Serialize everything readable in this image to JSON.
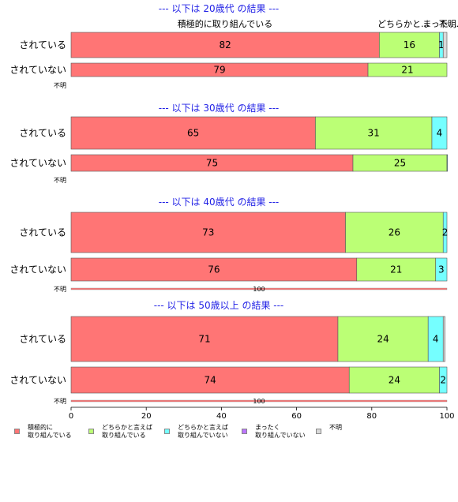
{
  "chart_data": {
    "type": "bar",
    "orientation": "horizontal",
    "stacked": true,
    "xlim": [
      0,
      100
    ],
    "x_ticks": [
      0,
      20,
      40,
      60,
      80,
      100
    ],
    "categories": [
      "積極的に取り組んでいる",
      "どちらかと言えば取り組んでいる",
      "どちらかと言えば取り組んでいない",
      "まったく取り組んでいない",
      "不明"
    ],
    "colors": [
      "#ff7575",
      "#bbff75",
      "#75ffff",
      "#bb75ff",
      "#d9d9d9"
    ],
    "top_labels": [
      "積極的に取り組んでいる",
      "どちらかと…",
      "まった…",
      "不明..."
    ],
    "groups": [
      {
        "title": "--- 以下は 20歳代 の結果 ---",
        "rows": [
          {
            "label": "されている",
            "values": [
              82,
              16,
              1,
              0,
              1
            ],
            "value_labels": [
              "82",
              "16",
              "1",
              "",
              ""
            ]
          },
          {
            "label": "されていない",
            "values": [
              79,
              21,
              0,
              0,
              0
            ],
            "value_labels": [
              "79",
              "21",
              "",
              "",
              ""
            ]
          }
        ],
        "unknown": {
          "label": "不明",
          "value_label": ""
        }
      },
      {
        "title": "--- 以下は 30歳代 の結果 ---",
        "rows": [
          {
            "label": "されている",
            "values": [
              65,
              31,
              4,
              0,
              0
            ],
            "value_labels": [
              "65",
              "31",
              "4",
              "",
              ""
            ]
          },
          {
            "label": "されていない",
            "values": [
              75,
              25,
              0.5,
              0,
              0
            ],
            "value_labels": [
              "75",
              "25",
              "",
              "",
              ""
            ]
          }
        ],
        "unknown": {
          "label": "不明",
          "value_label": ""
        }
      },
      {
        "title": "--- 以下は 40歳代 の結果 ---",
        "rows": [
          {
            "label": "されている",
            "values": [
              73,
              26,
              2,
              0,
              0
            ],
            "value_labels": [
              "73",
              "26",
              "2",
              "",
              ""
            ]
          },
          {
            "label": "されていない",
            "values": [
              76,
              21,
              3,
              0,
              0
            ],
            "value_labels": [
              "76",
              "21",
              "3",
              "",
              ""
            ]
          }
        ],
        "unknown": {
          "label": "不明",
          "value_label": "100"
        }
      },
      {
        "title": "--- 以下は 50歳以上 の結果 ---",
        "rows": [
          {
            "label": "されている",
            "values": [
              71,
              24,
              4,
              0,
              0.5
            ],
            "value_labels": [
              "71",
              "24",
              "4",
              "",
              ""
            ]
          },
          {
            "label": "されていない",
            "values": [
              74,
              24,
              2,
              0,
              0
            ],
            "value_labels": [
              "74",
              "24",
              "2",
              "",
              ""
            ]
          }
        ],
        "unknown": {
          "label": "不明",
          "value_label": "100"
        }
      }
    ],
    "legend": [
      {
        "line1": "積極的に",
        "line2": "取り組んでいる"
      },
      {
        "line1": "どちらかと言えば",
        "line2": "取り組んでいる"
      },
      {
        "line1": "どちらかと言えば",
        "line2": "取り組んでいない"
      },
      {
        "line1": "まったく",
        "line2": "取り組んでいない"
      },
      {
        "line1": "不明",
        "line2": ""
      }
    ],
    "legend_placement": "bottom"
  }
}
